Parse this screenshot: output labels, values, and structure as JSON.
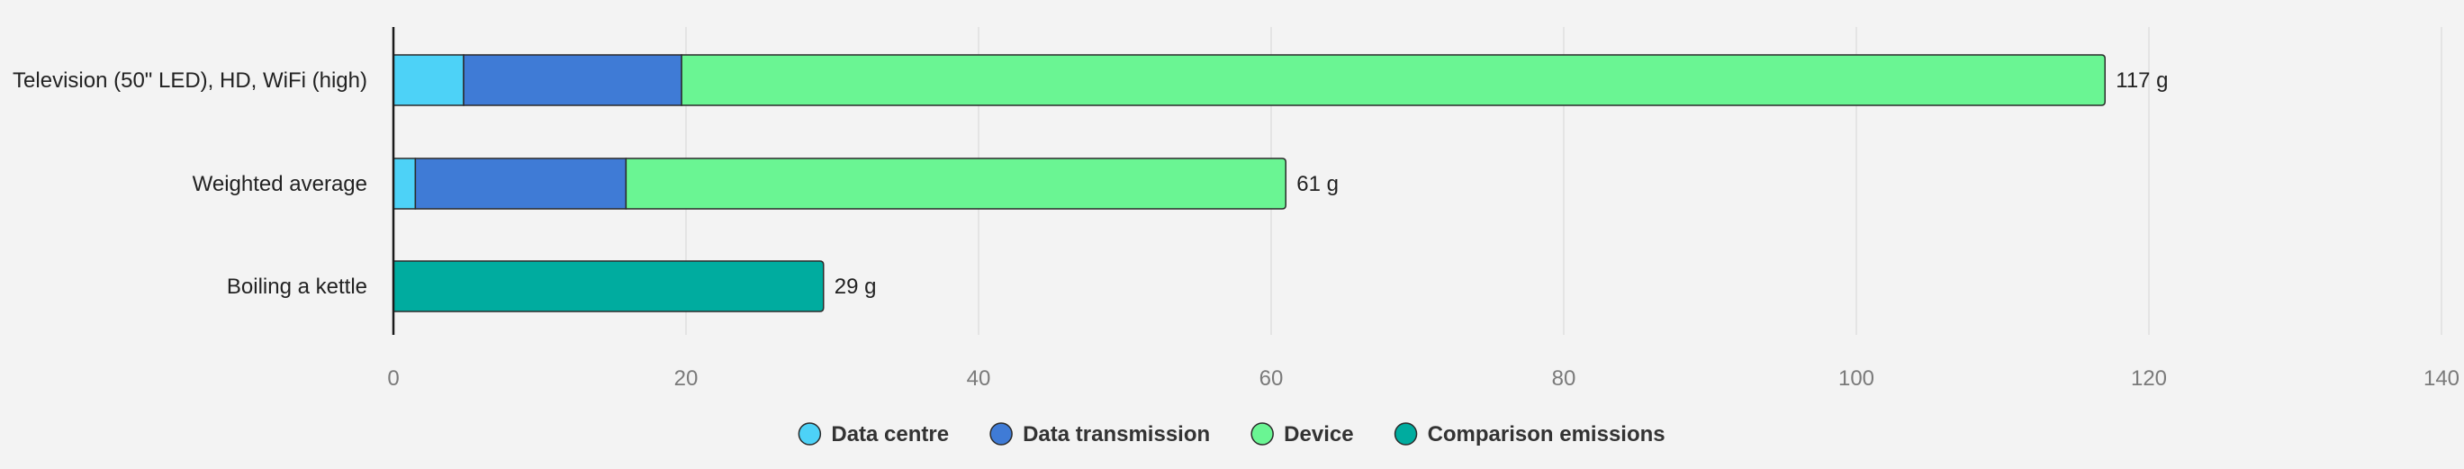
{
  "chart_data": {
    "type": "bar",
    "orientation": "horizontal",
    "stacked": true,
    "categories": [
      "Television (50\" LED), HD, WiFi (high)",
      "Weighted average",
      "Boiling a kettle"
    ],
    "series": [
      {
        "name": "Data centre",
        "color": "#4dd2f7",
        "values": [
          4.8,
          1.5,
          0
        ]
      },
      {
        "name": "Data transmission",
        "color": "#3f7bd6",
        "values": [
          14.9,
          14.4,
          0
        ]
      },
      {
        "name": "Device",
        "color": "#6af593",
        "values": [
          97.3,
          45.1,
          0
        ]
      },
      {
        "name": "Comparison emissions",
        "color": "#00ac9f",
        "values": [
          0,
          0,
          29.4
        ]
      }
    ],
    "value_labels": [
      "117 g",
      "61 g",
      "29 g"
    ],
    "xlim": [
      0,
      140
    ],
    "xticks": [
      0,
      20,
      40,
      60,
      80,
      100,
      120,
      140
    ],
    "xtick_labels": [
      "0",
      "20",
      "40",
      "60",
      "80",
      "100",
      "120",
      "140"
    ],
    "grid": "vertical",
    "legend_position": "bottom-center"
  }
}
